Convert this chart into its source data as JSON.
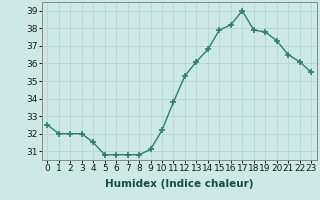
{
  "x": [
    0,
    1,
    2,
    3,
    4,
    5,
    6,
    7,
    8,
    9,
    10,
    11,
    12,
    13,
    14,
    15,
    16,
    17,
    18,
    19,
    20,
    21,
    22,
    23
  ],
  "y": [
    32.5,
    32.0,
    32.0,
    32.0,
    31.5,
    30.8,
    30.8,
    30.8,
    30.8,
    31.1,
    32.2,
    33.8,
    35.3,
    36.1,
    36.8,
    37.9,
    38.2,
    39.0,
    37.9,
    37.8,
    37.3,
    36.5,
    36.1,
    35.5
  ],
  "line_color": "#2e7d6e",
  "marker_color": "#2e7d6e",
  "bg_color": "#cce9e6",
  "grid_color": "#b8d8d4",
  "xlabel": "Humidex (Indice chaleur)",
  "ylim": [
    30.5,
    39.5
  ],
  "xlim": [
    -0.5,
    23.5
  ],
  "yticks": [
    31,
    32,
    33,
    34,
    35,
    36,
    37,
    38,
    39
  ],
  "xticks": [
    0,
    1,
    2,
    3,
    4,
    5,
    6,
    7,
    8,
    9,
    10,
    11,
    12,
    13,
    14,
    15,
    16,
    17,
    18,
    19,
    20,
    21,
    22,
    23
  ],
  "tick_fontsize": 6.5,
  "xlabel_fontsize": 7.5
}
